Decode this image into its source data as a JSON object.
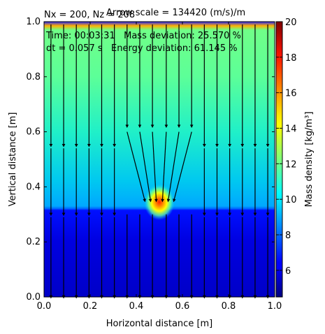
{
  "chart_data": {
    "type": "heatmap",
    "title_left": "Nx = 200, Nz = 208",
    "title_right": "Arrow scale = 134420 (m/s)/m",
    "annotation_line1": "Time: 00:03:31   Mass deviation: 25.570 %",
    "annotation_line2": "dt = 0.057 s   Energy deviation: 61.145 %",
    "xlabel": "Horizontal distance [m]",
    "ylabel": "Vertical distance [m]",
    "colorbar_label": "Mass density [kg/m³]",
    "xlim": [
      0.0,
      1.0
    ],
    "ylim": [
      0.0,
      1.0
    ],
    "xticks": [
      "0.0",
      "0.2",
      "0.4",
      "0.6",
      "0.8",
      "1.0"
    ],
    "yticks": [
      "0.0",
      "0.2",
      "0.4",
      "0.6",
      "0.8",
      "1.0"
    ],
    "colorbar_range": [
      4.5,
      20.0
    ],
    "colorbar_ticks": [
      "6",
      "8",
      "10",
      "12",
      "14",
      "16",
      "18",
      "20"
    ],
    "colormap": "jet",
    "density_profile": {
      "lower_layer_top": 0.32,
      "lower_layer_value": 5.2,
      "interface_value": 8.0,
      "upper_layer_value_low": 9.3,
      "upper_layer_value_high": 10.8,
      "hot_spot": {
        "x": 0.5,
        "y": 0.345,
        "peak": 15.5
      }
    },
    "arrow_columns_x": [
      0.03,
      0.085,
      0.14,
      0.195,
      0.25,
      0.305,
      0.36,
      0.415,
      0.47,
      0.53,
      0.585,
      0.64,
      0.695,
      0.75,
      0.805,
      0.86,
      0.915,
      0.97
    ]
  }
}
